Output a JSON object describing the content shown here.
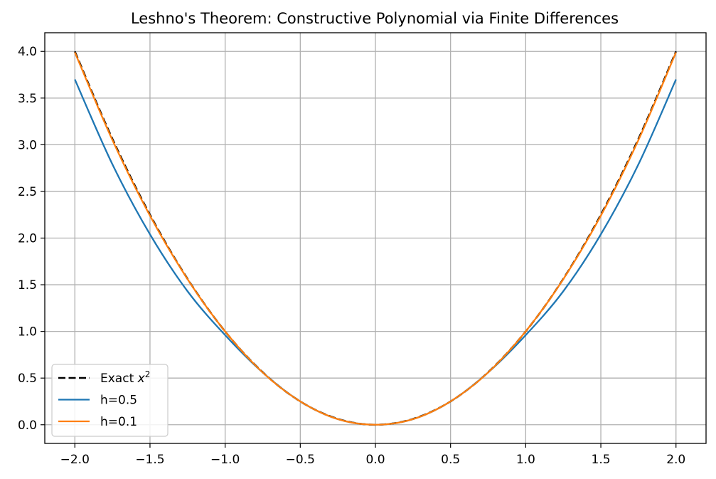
{
  "chart_data": {
    "type": "line",
    "title": "Leshno's Theorem: Constructive Polynomial via Finite Differences",
    "xlabel": "",
    "ylabel": "",
    "xlim": [
      -2.2,
      2.2
    ],
    "ylim": [
      -0.2,
      4.2
    ],
    "grid": true,
    "legend_position": "lower-left",
    "x_ticks": [
      -2.0,
      -1.5,
      -1.0,
      -0.5,
      0.0,
      0.5,
      1.0,
      1.5,
      2.0
    ],
    "x_tick_labels": [
      "−2.0",
      "−1.5",
      "−1.0",
      "−0.5",
      "0.0",
      "0.5",
      "1.0",
      "1.5",
      "2.0"
    ],
    "y_ticks": [
      0.0,
      0.5,
      1.0,
      1.5,
      2.0,
      2.5,
      3.0,
      3.5,
      4.0
    ],
    "y_tick_labels": [
      "0.0",
      "0.5",
      "1.0",
      "1.5",
      "2.0",
      "2.5",
      "3.0",
      "3.5",
      "4.0"
    ],
    "x": [
      -2.0,
      -1.75,
      -1.5,
      -1.25,
      -1.0,
      -0.75,
      -0.5,
      -0.25,
      0.0,
      0.25,
      0.5,
      0.75,
      1.0,
      1.25,
      1.5,
      1.75,
      2.0
    ],
    "series": [
      {
        "name": "Exact x²",
        "name_base": "Exact ",
        "name_var": "x",
        "name_sup": "2",
        "color": "#000000",
        "style": "dashed",
        "values": [
          4.0,
          3.0625,
          2.25,
          1.5625,
          1.0,
          0.5625,
          0.25,
          0.0625,
          0.0,
          0.0625,
          0.25,
          0.5625,
          1.0,
          1.5625,
          2.25,
          3.0625,
          4.0
        ]
      },
      {
        "name": "h=0.5",
        "color": "#1f77b4",
        "style": "solid",
        "values": [
          3.7,
          2.79,
          2.04,
          1.43,
          0.96,
          0.56,
          0.25,
          0.06,
          0.0,
          0.06,
          0.25,
          0.56,
          0.96,
          1.43,
          2.04,
          2.79,
          3.7
        ]
      },
      {
        "name": "h=0.1",
        "color": "#ff7f0e",
        "style": "solid",
        "values": [
          3.99,
          3.05,
          2.24,
          1.56,
          1.0,
          0.56,
          0.25,
          0.06,
          0.0,
          0.06,
          0.25,
          0.56,
          1.0,
          1.56,
          2.24,
          3.05,
          3.99
        ]
      }
    ]
  }
}
